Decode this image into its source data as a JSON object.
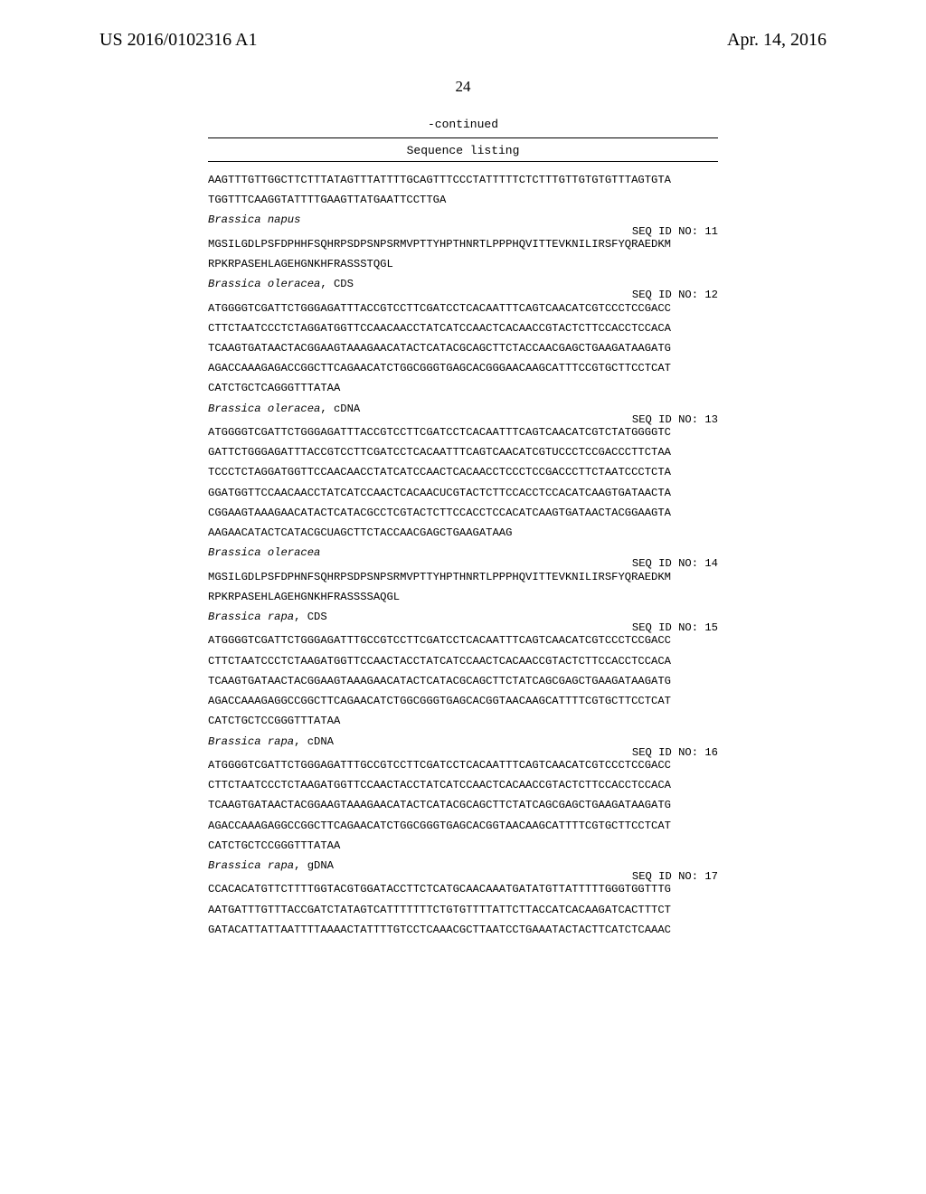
{
  "header": {
    "pubnum": "US 2016/0102316 A1",
    "date": "Apr. 14, 2016",
    "pagenum": "24"
  },
  "continued": "-continued",
  "listing_title": "Sequence listing",
  "blocks": [
    {
      "type": "line",
      "text": "AAGTTTGTTGGCTTCTTTATAGTTTATTTTGCAGTTTCCCTATTTTTCTCTTTGTTGTGTGTTTAGTGTA"
    },
    {
      "type": "line",
      "text": "TGGTTTCAAGGTATTTTGAAGTTATGAATTCCTTGA"
    },
    {
      "type": "label",
      "italic": true,
      "text": "Brassica napus"
    },
    {
      "type": "seqid",
      "text": "SEQ ID NO: 11"
    },
    {
      "type": "line",
      "text": "MGSILGDLPSFDPHHFSQHRPSDPSNPSRMVPTTYHPTHNRTLPPPHQVITTEVKNILIRSFYQRAEDKM"
    },
    {
      "type": "line",
      "text": "RPKRPASEHLAGEHGNKHFRASSSTQGL"
    },
    {
      "type": "label",
      "italic_prefix": "Brassica oleracea",
      "suffix": ", CDS"
    },
    {
      "type": "seqid",
      "text": "SEQ ID NO: 12"
    },
    {
      "type": "line",
      "text": "ATGGGGTCGATTCTGGGAGATTTACCGTCCTTCGATCCTCACAATTTCAGTCAACATCGTCCCTCCGACC"
    },
    {
      "type": "line",
      "text": "CTTCTAATCCCTCTAGGATGGTTCCAACAACCTATCATCCAACTCACAACCGTACTCTTCCACCTCCACA"
    },
    {
      "type": "line",
      "text": "TCAAGTGATAACTACGGAAGTAAAGAACATACTCATACGCAGCTTCTACCAACGAGCTGAAGATAAGATG"
    },
    {
      "type": "line",
      "text": "AGACCAAAGAGACCGGCTTCAGAACATCTGGCGGGTGAGCACGGGAACAAGCATTTCCGTGCTTCCTCAT"
    },
    {
      "type": "line",
      "text": "CATCTGCTCAGGGTTTATAA"
    },
    {
      "type": "label",
      "italic_prefix": "Brassica oleracea",
      "suffix": ", cDNA"
    },
    {
      "type": "seqid",
      "text": "SEQ ID NO: 13"
    },
    {
      "type": "line",
      "text": "ATGGGGTCGATTCTGGGAGATTTACCGTCCTTCGATCCTCACAATTTCAGTCAACATCGTCTATGGGGTC"
    },
    {
      "type": "line",
      "text": "GATTCTGGGAGATTTACCGTCCTTCGATCCTCACAATTTCAGTCAACATCGTUCCCTCCGACCCTTCTAA"
    },
    {
      "type": "line",
      "text": "TCCCTCTAGGATGGTTCCAACAACCTATCATCCAACTCACAACCTCCCTCCGACCCTTCTAATCCCTCTA"
    },
    {
      "type": "line",
      "text": "GGATGGTTCCAACAACCTATCATCCAACTCACAACUCGTACTCTTCCACCTCCACATCAAGTGATAACTA"
    },
    {
      "type": "line",
      "text": "CGGAAGTAAAGAACATACTCATACGCCTCGTACTCTTCCACCTCCACATCAAGTGATAACTACGGAAGTA"
    },
    {
      "type": "line",
      "text": "AAGAACATACTCATACGCUAGCTTCTACCAACGAGCTGAAGATAAG"
    },
    {
      "type": "label",
      "italic": true,
      "text": "Brassica oleracea"
    },
    {
      "type": "seqid",
      "text": "SEQ ID NO: 14"
    },
    {
      "type": "line",
      "text": "MGSILGDLPSFDPHNFSQHRPSDPSNPSRMVPTTYHPTHNRTLPPPHQVITTEVKNILIRSFYQRAEDKM"
    },
    {
      "type": "line",
      "text": "RPKRPASEHLAGEHGNKHFRASSSSAQGL"
    },
    {
      "type": "label",
      "italic_prefix": "Brassica rapa",
      "suffix": ", CDS"
    },
    {
      "type": "seqid",
      "text": "SEQ ID NO: 15"
    },
    {
      "type": "line",
      "text": "ATGGGGTCGATTCTGGGAGATTTGCCGTCCTTCGATCCTCACAATTTCAGTCAACATCGTCCCTCCGACC"
    },
    {
      "type": "line",
      "text": "CTTCTAATCCCTCTAAGATGGTTCCAACTACCTATCATCCAACTCACAACCGTACTCTTCCACCTCCACA"
    },
    {
      "type": "line",
      "text": "TCAAGTGATAACTACGGAAGTAAAGAACATACTCATACGCAGCTTCTATCAGCGAGCTGAAGATAAGATG"
    },
    {
      "type": "line",
      "text": "AGACCAAAGAGGCCGGCTTCAGAACATCTGGCGGGTGAGCACGGTAACAAGCATTTTCGTGCTTCCTCAT"
    },
    {
      "type": "line",
      "text": "CATCTGCTCCGGGTTTATAA"
    },
    {
      "type": "label",
      "italic_prefix": "Brassica rapa",
      "suffix": ", cDNA"
    },
    {
      "type": "seqid",
      "text": "SEQ ID NO: 16"
    },
    {
      "type": "line",
      "text": "ATGGGGTCGATTCTGGGAGATTTGCCGTCCTTCGATCCTCACAATTTCAGTCAACATCGTCCCTCCGACC"
    },
    {
      "type": "line",
      "text": "CTTCTAATCCCTCTAAGATGGTTCCAACTACCTATCATCCAACTCACAACCGTACTCTTCCACCTCCACA"
    },
    {
      "type": "line",
      "text": "TCAAGTGATAACTACGGAAGTAAAGAACATACTCATACGCAGCTTCTATCAGCGAGCTGAAGATAAGATG"
    },
    {
      "type": "line",
      "text": "AGACCAAAGAGGCCGGCTTCAGAACATCTGGCGGGTGAGCACGGTAACAAGCATTTTCGTGCTTCCTCAT"
    },
    {
      "type": "line",
      "text": "CATCTGCTCCGGGTTTATAA"
    },
    {
      "type": "label",
      "italic_prefix": "Brassica rapa",
      "suffix": ", gDNA"
    },
    {
      "type": "seqid",
      "text": "SEQ ID NO: 17"
    },
    {
      "type": "line",
      "text": "CCACACATGTTCTTTTGGTACGTGGATACCTTCTCATGCAACAAATGATATGTTATTTTTGGGTGGTTTG"
    },
    {
      "type": "line",
      "text": "AATGATTTGTTTACCGATCTATAGTCATTTTTTTCTGTGTTTTATTCTTACCATCACAAGATCACTTTCT"
    },
    {
      "type": "line",
      "text": "GATACATTATTAATTTTAAAACTATTTTGTCCTCAAACGCTTAATCCTGAAATACTACTTCATCTCAAAC"
    }
  ]
}
